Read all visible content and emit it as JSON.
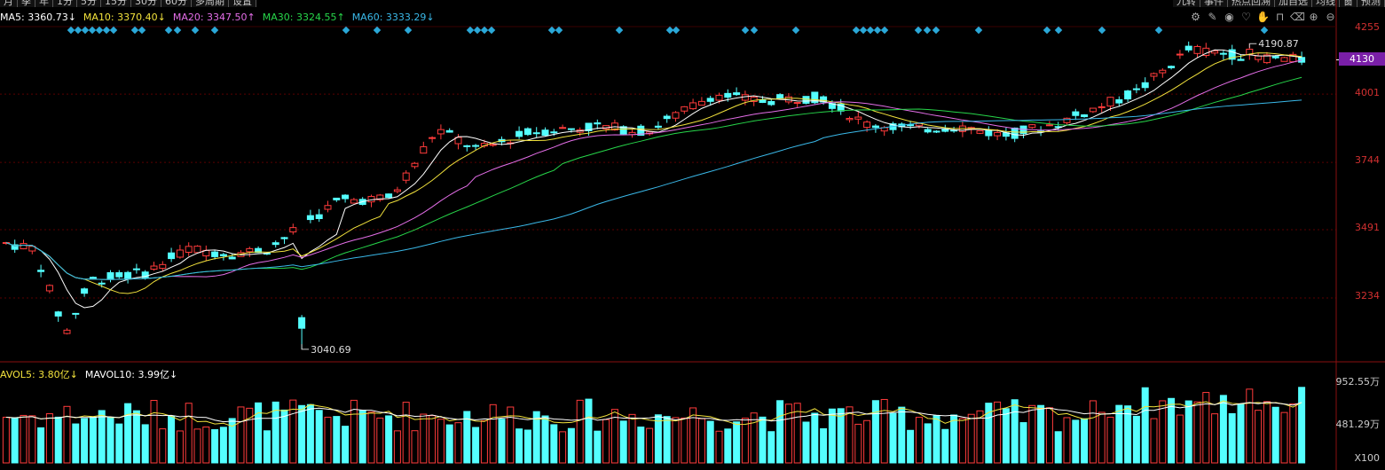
{
  "period_tabs": [
    "月",
    "季",
    "年",
    "1分",
    "5分",
    "15分",
    "30分",
    "60分",
    "多周期",
    "设置"
  ],
  "right_tabs": [
    "九转",
    "事件",
    "热点回溯",
    "加自选",
    "均线",
    "窗",
    "预测"
  ],
  "ma_legend": [
    {
      "label": "MA5: 3360.73↓",
      "color": "#ffffff"
    },
    {
      "label": "MA10: 3370.40↓",
      "color": "#f2e23c"
    },
    {
      "label": "MA20: 3347.50↑",
      "color": "#e46ee8"
    },
    {
      "label": "MA30: 3324.55↑",
      "color": "#27d64a"
    },
    {
      "label": "MA60: 3333.29↓",
      "color": "#3ab8e8"
    }
  ],
  "vol_legend": [
    {
      "label": "AVOL5: 3.80亿↓",
      "color": "#f2e23c"
    },
    {
      "label": "MAVOL10: 3.99亿↓",
      "color": "#ffffff"
    }
  ],
  "axis": {
    "price_ticks": [
      "4255",
      "4001",
      "3744",
      "3491",
      "3234"
    ],
    "current_price": "4130",
    "vol_ticks": [
      "952.55万",
      "481.29万"
    ],
    "vol_unit": "X100"
  },
  "annotations": {
    "high": "4190.87",
    "low": "3040.69"
  },
  "toolbar_icons": [
    "gear-icon",
    "pen-icon",
    "eye-icon",
    "heart-icon",
    "hand-icon",
    "lock-icon",
    "delete-icon",
    "zoom-in-icon",
    "zoom-out-icon"
  ],
  "colors": {
    "up": "#ff3b3b",
    "down": "#54ffff",
    "grid": "#5a0000",
    "axis": "#d23030",
    "marker": "#2aa8d8"
  },
  "chart_data": {
    "type": "candlestick",
    "y_range": [
      3040,
      4255
    ],
    "candles_count": 150,
    "high": 4190.87,
    "low": 3040.69,
    "last_close": 4130
  }
}
